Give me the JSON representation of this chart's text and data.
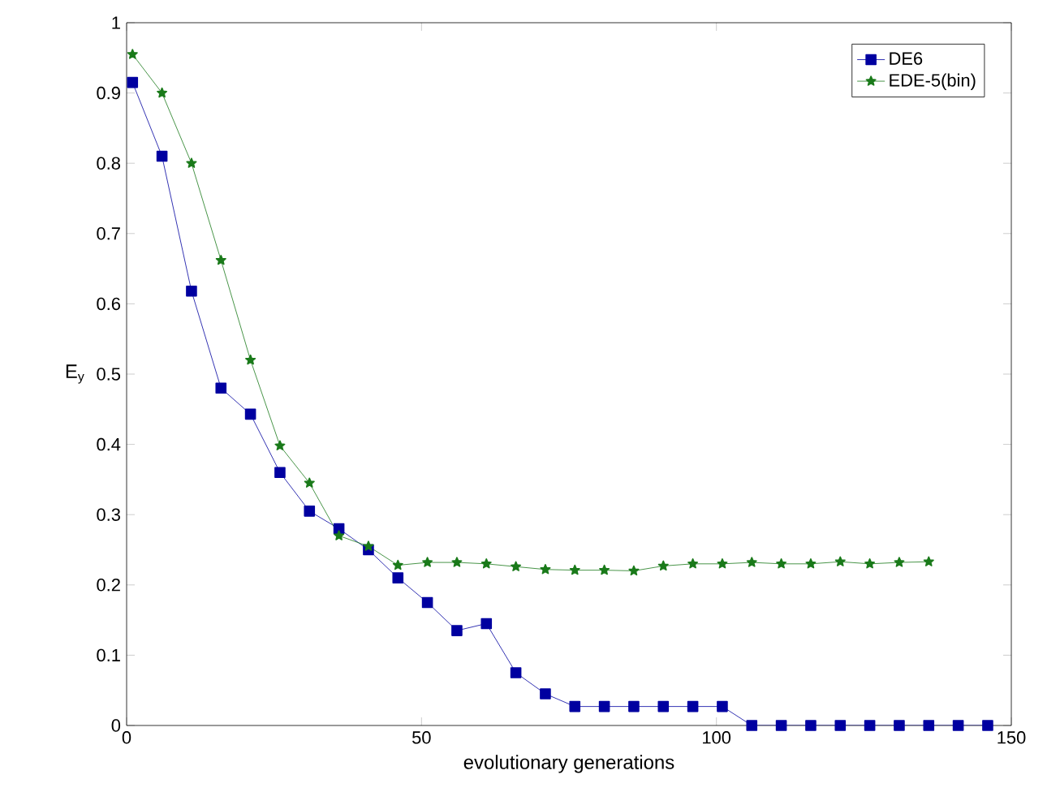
{
  "chart_data": {
    "type": "line",
    "xlabel": "evolutionary generations",
    "ylabel": "E$_{y}$",
    "xlim": [
      0,
      150
    ],
    "ylim": [
      0,
      1
    ],
    "xticks": [
      0,
      50,
      100,
      150
    ],
    "yticks": [
      0,
      0.1,
      0.2,
      0.3,
      0.4,
      0.5,
      0.6,
      0.7,
      0.8,
      0.9,
      1
    ],
    "legend": "top right",
    "grid": false,
    "series": [
      {
        "name": "DE6",
        "color": "#0000a0",
        "marker": "square",
        "x": [
          1,
          6,
          11,
          16,
          21,
          26,
          31,
          36,
          41,
          46,
          51,
          56,
          61,
          66,
          71,
          76,
          81,
          86,
          91,
          96,
          101,
          106,
          111,
          116,
          121,
          126,
          131,
          136,
          141,
          146
        ],
        "values": [
          0.915,
          0.81,
          0.618,
          0.48,
          0.443,
          0.36,
          0.305,
          0.28,
          0.25,
          0.21,
          0.175,
          0.135,
          0.145,
          0.075,
          0.045,
          0.027,
          0.027,
          0.027,
          0.027,
          0.027,
          0.027,
          0,
          0,
          0,
          0,
          0,
          0,
          0,
          0,
          0
        ]
      },
      {
        "name": "EDE-5(bin)",
        "color": "#1a7a1a",
        "marker": "star",
        "x": [
          1,
          6,
          11,
          16,
          21,
          26,
          31,
          36,
          41,
          46,
          51,
          56,
          61,
          66,
          71,
          76,
          81,
          86,
          91,
          96,
          101,
          106,
          111,
          116,
          121,
          126,
          131,
          136
        ],
        "values": [
          0.955,
          0.9,
          0.8,
          0.662,
          0.52,
          0.398,
          0.345,
          0.27,
          0.255,
          0.228,
          0.232,
          0.232,
          0.23,
          0.226,
          0.222,
          0.221,
          0.221,
          0.22,
          0.227,
          0.23,
          0.23,
          0.232,
          0.23,
          0.23,
          0.233,
          0.23,
          0.232,
          0.233
        ]
      }
    ]
  }
}
